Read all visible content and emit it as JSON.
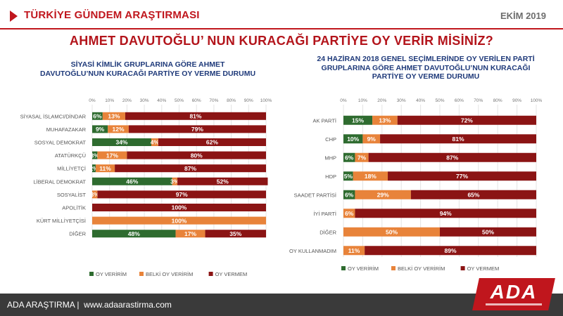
{
  "header": {
    "brand_title": "TÜRKİYE GÜNDEM ARAŞTIRMASI",
    "date": "EKİM 2019",
    "main_title": "AHMET DAVUTOĞLU’ NUN KURACAĞI PARTİYE OY VERİR MİSİNİZ?"
  },
  "footer": {
    "company": "ADA ARAŞTIRMA",
    "separator": "|",
    "url": "www.adaarastirma.com",
    "logo_text": "ADA"
  },
  "colors": {
    "oy_veririm": "#2e6b2f",
    "belki": "#e8833a",
    "oy_vermem": "#8b1414",
    "accent": "#c0161d",
    "subtitle": "#1f3a7a"
  },
  "chart_data": [
    {
      "type": "bar",
      "orientation": "horizontal",
      "stacked": true,
      "title": "SİYASİ KİMLİK GRUPLARINA GÖRE AHMET DAVUTOĞLU’NUN KURACAĞI PARTİYE OY VERME DURUMU",
      "title_lines": [
        "SİYASİ KİMLİK GRUPLARINA GÖRE AHMET",
        "DAVUTOĞLU’NUN KURACAĞI PARTİYE OY VERME DURUMU"
      ],
      "categories": [
        "SİYASAL İSLAMCI/DİNDAR",
        "MUHAFAZAKAR",
        "SOSYAL DEMOKRAT",
        "ATATÜRKÇÜ",
        "MİLLİYETÇİ",
        "LİBERAL DEMOKRAT",
        "SOSYALİST",
        "APOLİTİK",
        "KÜRT MİLLİYETÇİSİ",
        "DİĞER"
      ],
      "series": [
        {
          "name": "OY VERİRİM",
          "values": [
            6,
            9,
            34,
            3,
            2,
            46,
            0,
            0,
            0,
            48
          ],
          "labels": [
            "6%",
            "9%",
            "34%",
            "3%",
            "2%",
            "46%",
            "",
            "",
            "",
            "48%"
          ]
        },
        {
          "name": "BELKİ OY VERİRİM",
          "values": [
            13,
            12,
            4,
            17,
            11,
            3,
            3,
            0,
            100,
            17
          ],
          "labels": [
            "13%",
            "12%",
            "4%",
            "17%",
            "11%",
            "3%",
            "3%",
            "",
            "100%",
            "17%"
          ]
        },
        {
          "name": "OY VERMEM",
          "values": [
            81,
            79,
            62,
            80,
            87,
            52,
            97,
            100,
            0,
            35
          ],
          "labels": [
            "81%",
            "79%",
            "62%",
            "80%",
            "87%",
            "52%",
            "97%",
            "100%",
            "",
            "35%"
          ]
        }
      ],
      "x_ticks": [
        "0%",
        "10%",
        "20%",
        "30%",
        "40%",
        "50%",
        "60%",
        "70%",
        "80%",
        "90%",
        "100%"
      ],
      "xlim": [
        0,
        100
      ],
      "legend": [
        "OY VERİRİM",
        "BELKİ OY VERİRİM",
        "OY VERMEM"
      ],
      "legend_position": "bottom"
    },
    {
      "type": "bar",
      "orientation": "horizontal",
      "stacked": true,
      "title": "24 HAZİRAN 2018 GENEL SEÇİMLERİNDE OY VERİLEN PARTİ GRUPLARINA GÖRE AHMET DAVUTOĞLU’NUN KURACAĞI PARTİYE OY VERME DURUMU",
      "title_lines": [
        "24 HAZİRAN 2018 GENEL SEÇİMLERİNDE OY VERİLEN PARTİ",
        "GRUPLARINA GÖRE AHMET DAVUTOĞLU’NUN KURACAĞI",
        "PARTİYE OY VERME DURUMU"
      ],
      "categories": [
        "AK PARTİ",
        "CHP",
        "MHP",
        "HDP",
        "SAADET PARTİSİ",
        "İYİ PARTİ",
        "DİĞER",
        "OY KULLANMADIM"
      ],
      "series": [
        {
          "name": "OY VERİRİM",
          "values": [
            15,
            10,
            6,
            5,
            6,
            0,
            0,
            0
          ],
          "labels": [
            "15%",
            "10%",
            "6%",
            "5%",
            "6%",
            "",
            "",
            ""
          ]
        },
        {
          "name": "BELKİ OY VERİRİM",
          "values": [
            13,
            9,
            7,
            18,
            29,
            6,
            50,
            11
          ],
          "labels": [
            "13%",
            "9%",
            "7%",
            "18%",
            "29%",
            "6%",
            "50%",
            "11%"
          ]
        },
        {
          "name": "OY VERMEM",
          "values": [
            72,
            81,
            87,
            77,
            65,
            94,
            50,
            89
          ],
          "labels": [
            "72%",
            "81%",
            "87%",
            "77%",
            "65%",
            "94%",
            "50%",
            "89%"
          ]
        }
      ],
      "x_ticks": [
        "0%",
        "10%",
        "20%",
        "30%",
        "40%",
        "50%",
        "60%",
        "70%",
        "80%",
        "90%",
        "100%"
      ],
      "xlim": [
        0,
        100
      ],
      "legend": [
        "OY VERİRİM",
        "BELKİ OY VERİRİM",
        "OY VERMEM"
      ],
      "legend_position": "bottom"
    }
  ]
}
